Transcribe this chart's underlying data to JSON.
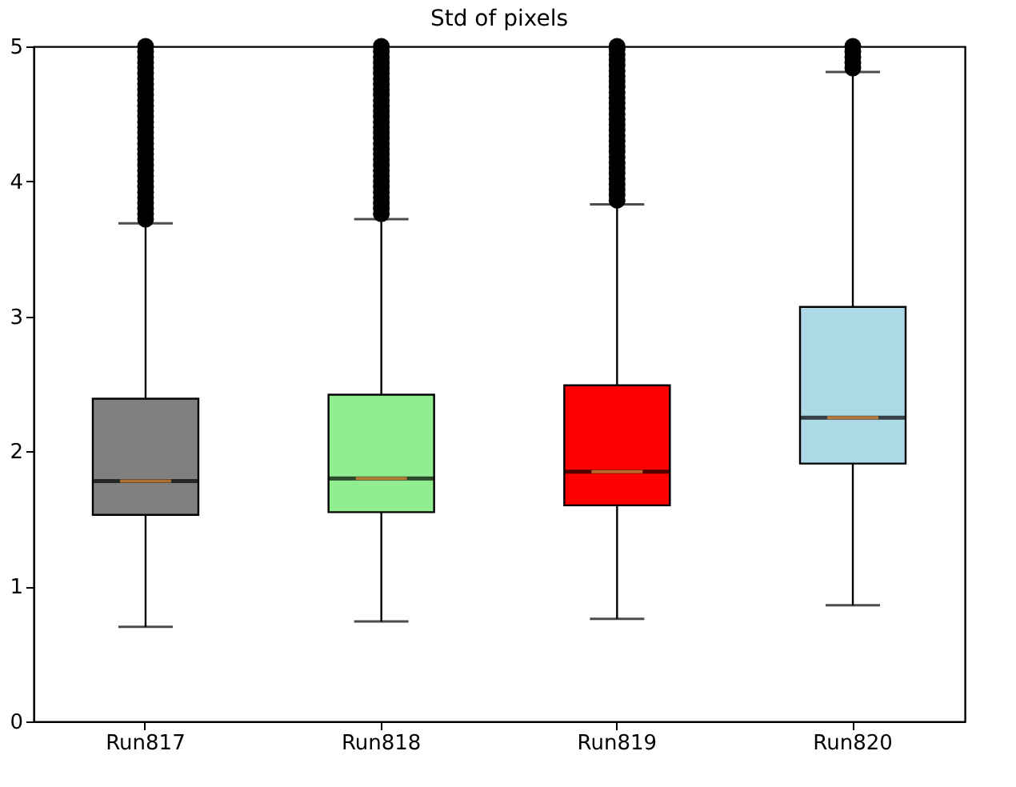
{
  "chart_data": {
    "type": "box",
    "title": "Std of pixels",
    "categories": [
      "Run817",
      "Run818",
      "Run819",
      "Run820"
    ],
    "colors": [
      "#808080",
      "#90ee90",
      "#ff0000",
      "#add8e6"
    ],
    "boxes": [
      {
        "low": 0.7,
        "q1": 1.53,
        "median": 1.78,
        "q3": 2.39,
        "high": 3.69,
        "outliers": [
          3.72,
          3.76,
          3.8,
          3.84,
          3.88,
          3.92,
          3.96,
          4.0,
          4.04,
          4.08,
          4.12,
          4.16,
          4.2,
          4.24,
          4.28,
          4.32,
          4.36,
          4.4,
          4.44,
          4.48,
          4.52,
          4.56,
          4.6,
          4.64,
          4.68,
          4.72,
          4.76,
          4.8,
          4.84,
          4.88,
          4.92,
          4.96,
          5.0
        ]
      },
      {
        "low": 0.74,
        "q1": 1.55,
        "median": 1.8,
        "q3": 2.42,
        "high": 3.72,
        "outliers": [
          3.76,
          3.8,
          3.84,
          3.88,
          3.92,
          3.96,
          4.0,
          4.04,
          4.08,
          4.12,
          4.16,
          4.2,
          4.24,
          4.28,
          4.32,
          4.36,
          4.4,
          4.44,
          4.48,
          4.52,
          4.56,
          4.6,
          4.64,
          4.68,
          4.72,
          4.76,
          4.8,
          4.84,
          4.88,
          4.92,
          4.96,
          5.0
        ]
      },
      {
        "low": 0.76,
        "q1": 1.6,
        "median": 1.85,
        "q3": 2.49,
        "high": 3.83,
        "outliers": [
          3.86,
          3.9,
          3.94,
          3.98,
          4.02,
          4.06,
          4.1,
          4.14,
          4.18,
          4.22,
          4.26,
          4.3,
          4.34,
          4.38,
          4.42,
          4.46,
          4.5,
          4.54,
          4.58,
          4.62,
          4.66,
          4.7,
          4.74,
          4.78,
          4.82,
          4.86,
          4.9,
          4.94,
          4.98,
          5.0
        ]
      },
      {
        "low": 0.86,
        "q1": 1.91,
        "median": 2.25,
        "q3": 3.07,
        "high": 4.81,
        "outliers": [
          4.84,
          4.88,
          4.92,
          4.96,
          5.0
        ]
      }
    ],
    "ylim": [
      0,
      5
    ],
    "yticks": [
      0,
      1,
      2,
      3,
      4,
      5
    ],
    "grid": false
  }
}
